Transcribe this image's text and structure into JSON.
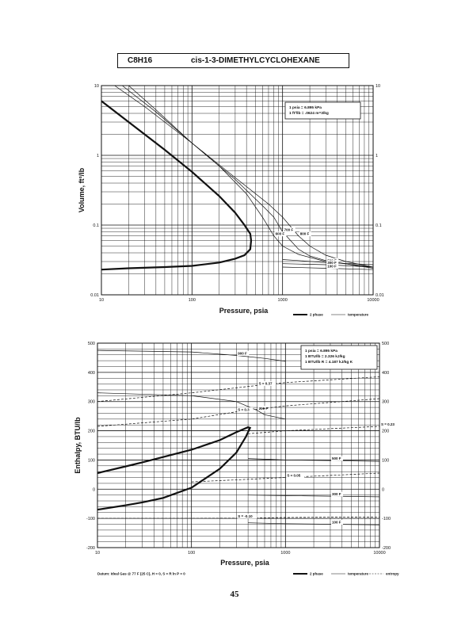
{
  "header": {
    "formula": "C8H16",
    "compound": "cis-1-3-DIMETHYLCYCLOHEXANE"
  },
  "page_number": "45",
  "chart_data": [
    {
      "type": "line",
      "xscale": "log",
      "yscale": "log",
      "xlim": [
        10,
        10000
      ],
      "ylim": [
        0.01,
        10
      ],
      "xlabel": "Pressure,  psia",
      "ylabel": "Volume, ft^3/lb",
      "x_ticks": [
        "10",
        "100",
        "1000",
        "10000"
      ],
      "y_ticks": [
        "0.01",
        "0.1",
        "1",
        "10"
      ],
      "y_ticks_right": [
        "0.01",
        "0.1",
        "1",
        "10"
      ],
      "grid": true,
      "conversion_box": [
        "1 psia  =  6.895 kPa",
        "1 ft^3/lb  =  .0624 m^3/kg"
      ],
      "legend": [
        {
          "label": "2 phase",
          "style": "bold"
        },
        {
          "label": "temperature",
          "style": "thin"
        }
      ],
      "series": [
        {
          "role": "2phase",
          "style": "bold",
          "x": [
            10,
            20,
            50,
            100,
            200,
            300,
            380,
            440,
            450,
            440,
            380,
            300,
            200,
            100,
            50,
            20,
            10
          ],
          "y": [
            6,
            3,
            1.2,
            0.58,
            0.26,
            0.15,
            0.1,
            0.075,
            0.06,
            0.045,
            0.037,
            0.033,
            0.029,
            0.026,
            0.025,
            0.024,
            0.023
          ]
        },
        {
          "name": "800 F",
          "style": "thin",
          "x": [
            14,
            30,
            100,
            300,
            700,
            1000,
            1500,
            2000,
            3000,
            5000,
            10000
          ],
          "y": [
            10,
            5,
            1.5,
            0.48,
            0.2,
            0.13,
            0.07,
            0.05,
            0.037,
            0.03,
            0.025
          ]
        },
        {
          "name": "700 F",
          "style": "thin",
          "x": [
            17,
            40,
            100,
            300,
            600,
            800,
            1000,
            1500,
            2000,
            3000,
            10000
          ],
          "y": [
            10,
            4.2,
            1.5,
            0.45,
            0.19,
            0.13,
            0.08,
            0.045,
            0.036,
            0.031,
            0.024
          ]
        },
        {
          "name": "600 F",
          "style": "thin",
          "x": [
            20,
            40,
            100,
            200,
            400,
            600,
            800,
            1000,
            1500,
            3000,
            10000
          ],
          "y": [
            10,
            4.5,
            1.5,
            0.7,
            0.28,
            0.13,
            0.07,
            0.05,
            0.038,
            0.03,
            0.025
          ]
        },
        {
          "name": "500 F",
          "style": "thin",
          "x": [
            1000,
            1500,
            3000,
            10000
          ],
          "y": [
            0.032,
            0.031,
            0.029,
            0.027
          ]
        },
        {
          "name": "300 F",
          "style": "thin",
          "x": [
            1000,
            3000,
            10000
          ],
          "y": [
            0.028,
            0.027,
            0.025
          ]
        },
        {
          "name": "100 F",
          "style": "thin",
          "x": [
            1000,
            3000,
            10000
          ],
          "y": [
            0.025,
            0.024,
            0.023
          ]
        }
      ],
      "curve_labels": [
        "800 F",
        "700 F",
        "600 F",
        "500 F",
        "300 F",
        "100 F"
      ]
    },
    {
      "type": "line",
      "xscale": "log",
      "yscale": "linear",
      "xlim": [
        10,
        10000
      ],
      "ylim": [
        -200,
        500
      ],
      "xlabel": "Pressure,  psia",
      "ylabel": "Enthalpy, BTU/lb",
      "x_ticks": [
        "10",
        "100",
        "1000",
        "10000"
      ],
      "y_ticks": [
        "-200",
        "-100",
        "0",
        "100",
        "200",
        "300",
        "400",
        "500"
      ],
      "y_ticks_right": [
        "-200",
        "-100",
        "0",
        "100",
        "200",
        "300",
        "400",
        "500"
      ],
      "grid": true,
      "conversion_box": [
        "1 psia  =  6.895 kPa",
        "1 BTU/lb  =  2.326 kJ/kg",
        "1 BTU/lb R  =  4.187 kJ/kg K"
      ],
      "datum_note": "Datum: Ideal Gas @ 77 F (25 C),  H = 0,  S = R ln P = 0",
      "legend": [
        {
          "label": "2 phase",
          "style": "bold"
        },
        {
          "label": "temperature",
          "style": "thin"
        },
        {
          "label": "entropy",
          "style": "dashed"
        }
      ],
      "series": [
        {
          "role": "2phase",
          "style": "bold",
          "x": [
            10,
            20,
            30,
            50,
            100,
            200,
            300,
            400,
            420,
            380,
            300,
            200,
            100,
            50,
            30,
            20,
            10
          ],
          "y": [
            55,
            78,
            92,
            110,
            135,
            168,
            195,
            212,
            210,
            180,
            125,
            70,
            5,
            -30,
            -45,
            -55,
            -70
          ]
        },
        {
          "name": "900 F",
          "style": "thin",
          "x": [
            10,
            100,
            300,
            600,
            1000
          ],
          "y": [
            475,
            470,
            458,
            448,
            438
          ]
        },
        {
          "name": "700 F",
          "style": "thin",
          "x": [
            10,
            100,
            300,
            500,
            600,
            1000
          ],
          "y": [
            330,
            320,
            300,
            270,
            255,
            240
          ]
        },
        {
          "name": "500 F",
          "style": "thin",
          "x": [
            400,
            1000,
            3000,
            10000
          ],
          "y": [
            105,
            100,
            98,
            95
          ]
        },
        {
          "name": "300 F",
          "style": "thin",
          "x": [
            400,
            1000,
            3000,
            10000
          ],
          "y": [
            -20,
            -22,
            -24,
            -26
          ]
        },
        {
          "name": "100 F",
          "style": "thin",
          "x": [
            400,
            1000,
            3000,
            10000
          ],
          "y": [
            -115,
            -118,
            -120,
            -122
          ]
        },
        {
          "name": "S = 0.37",
          "style": "dashed",
          "x": [
            10,
            100,
            500,
            1000,
            10000
          ],
          "y": [
            300,
            330,
            355,
            365,
            385
          ]
        },
        {
          "name": "S = 0.3",
          "style": "dashed",
          "x": [
            10,
            100,
            300,
            1000,
            10000
          ],
          "y": [
            215,
            240,
            265,
            285,
            310
          ]
        },
        {
          "name": "S = 0.23",
          "style": "dashed",
          "x": [
            400,
            1000,
            10000
          ],
          "y": [
            190,
            200,
            215
          ]
        },
        {
          "name": "S = 0.05",
          "style": "dashed",
          "x": [
            100,
            300,
            1000,
            10000
          ],
          "y": [
            25,
            32,
            40,
            55
          ]
        },
        {
          "name": "S = -0.10",
          "style": "dashed",
          "x": [
            10,
            100,
            300,
            1000,
            10000
          ],
          "y": [
            -100,
            -100,
            -99,
            -97,
            -95
          ]
        }
      ],
      "curve_labels": [
        "900 F",
        "700 F",
        "500 F",
        "300 F",
        "100 F",
        "S = 0.37",
        "S = 0.3",
        "S = 0.23",
        "S = 0.05",
        "S = -0.10"
      ]
    }
  ]
}
